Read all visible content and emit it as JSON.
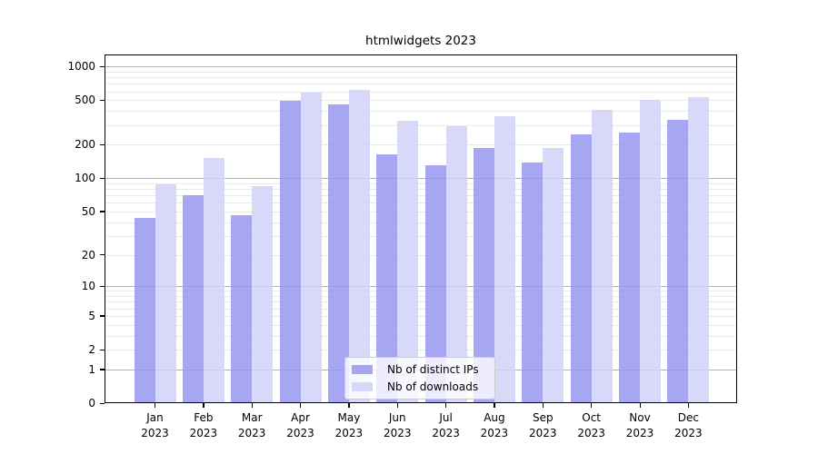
{
  "title": "htmlwidgets 2023",
  "colors": {
    "bar_ips": "rgba(150,150,240,0.85)",
    "bar_downloads": "rgba(209,209,248,0.85)",
    "grid_major": "#b0b0b0",
    "grid_minor": "#e9e9e9",
    "axis": "#000000",
    "legend_border": "#cccccc"
  },
  "legend": {
    "items": [
      {
        "label": "Nb of distinct IPs",
        "series": "ips"
      },
      {
        "label": "Nb of downloads",
        "series": "downloads"
      }
    ]
  },
  "chart_data": {
    "type": "bar",
    "title": "htmlwidgets 2023",
    "categories": [
      {
        "month": "Jan",
        "year": "2023"
      },
      {
        "month": "Feb",
        "year": "2023"
      },
      {
        "month": "Mar",
        "year": "2023"
      },
      {
        "month": "Apr",
        "year": "2023"
      },
      {
        "month": "May",
        "year": "2023"
      },
      {
        "month": "Jun",
        "year": "2023"
      },
      {
        "month": "Jul",
        "year": "2023"
      },
      {
        "month": "Aug",
        "year": "2023"
      },
      {
        "month": "Sep",
        "year": "2023"
      },
      {
        "month": "Oct",
        "year": "2023"
      },
      {
        "month": "Nov",
        "year": "2023"
      },
      {
        "month": "Dec",
        "year": "2023"
      }
    ],
    "series": [
      {
        "name": "Nb of distinct IPs",
        "values": [
          44,
          70,
          46,
          495,
          455,
          165,
          130,
          187,
          139,
          247,
          256,
          333
        ]
      },
      {
        "name": "Nb of downloads",
        "values": [
          88,
          152,
          85,
          590,
          615,
          328,
          295,
          360,
          187,
          410,
          505,
          530
        ]
      }
    ],
    "yscale": "log1p",
    "ylim": [
      0,
      1280
    ],
    "y_tick_labels": [
      1000,
      500,
      200,
      100,
      50,
      20,
      10,
      5,
      2,
      1,
      0
    ],
    "y_major_gridlines": [
      1,
      10,
      100,
      1000
    ],
    "y_minor_gridlines": [
      2,
      3,
      4,
      5,
      6,
      7,
      8,
      9,
      20,
      30,
      40,
      50,
      60,
      70,
      80,
      90,
      200,
      300,
      400,
      500,
      600,
      700,
      800,
      900
    ],
    "grid": true,
    "legend_position": "lower center"
  }
}
